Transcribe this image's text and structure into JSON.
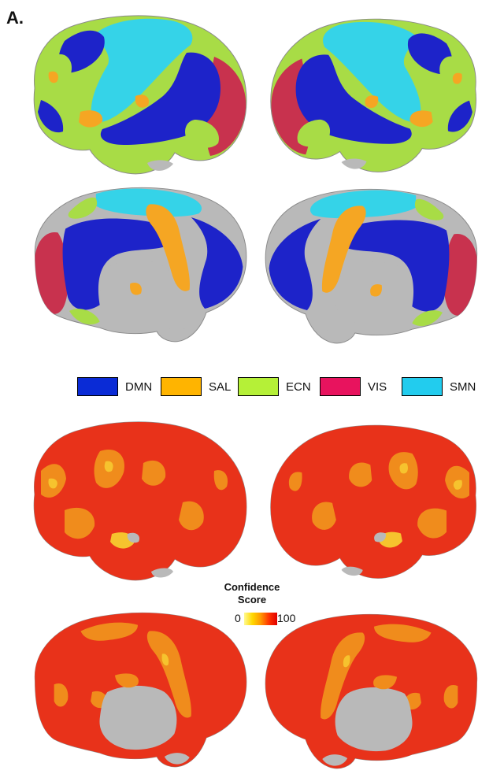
{
  "panel_label": "A.",
  "network_legend": {
    "items": [
      {
        "label": "DMN",
        "color": "#0a2bd6"
      },
      {
        "label": "SAL",
        "color": "#ffb400"
      },
      {
        "label": "ECN",
        "color": "#b5f037"
      },
      {
        "label": "VIS",
        "color": "#e8135e"
      },
      {
        "label": "SMN",
        "color": "#22ccee"
      }
    ]
  },
  "confidence_colorbar": {
    "title": "Confidence Score",
    "min_label": "0",
    "max_label": "100"
  },
  "colors": {
    "dmn": "#1d23c9",
    "sal": "#f5a623",
    "ecn": "#a8dc46",
    "vis": "#c8324e",
    "smn": "#35d3e8",
    "cortex_gray": "#b9b9b9",
    "conf_high": "#e8321a",
    "conf_mid": "#f08c1c",
    "conf_low": "#f6c32e"
  }
}
